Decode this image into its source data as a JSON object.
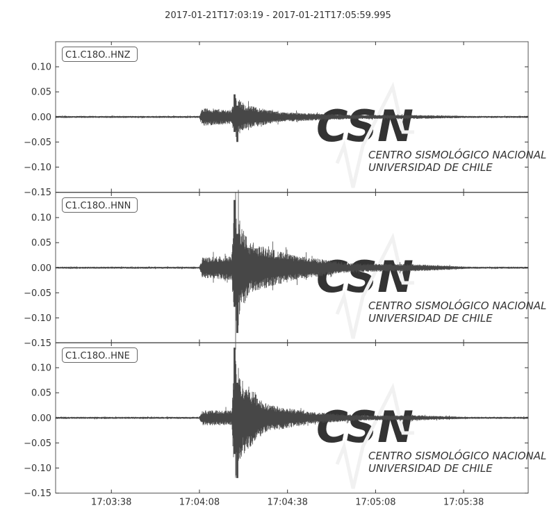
{
  "chart_data": {
    "type": "line",
    "title": "2017-01-21T17:03:19  -  2017-01-21T17:05:59.995",
    "start_time": "17:03:19",
    "end_time": "17:05:59.995",
    "x_ticks": [
      "17:03:38",
      "17:04:08",
      "17:04:38",
      "17:05:08",
      "17:05:38"
    ],
    "y_ticks": [
      "0.10",
      "0.05",
      "0.00",
      "−0.05",
      "−0.10",
      "−0.15"
    ],
    "ylim": [
      -0.15,
      0.15
    ],
    "grid": false,
    "trace_color": "#474747",
    "series": [
      {
        "name": "C1.C18O..HNZ",
        "peak_positive": 0.045,
        "peak_negative": -0.05,
        "envelope": [
          [
            "17:03:19",
            0.002
          ],
          [
            "17:04:08",
            0.002
          ],
          [
            "17:04:09",
            0.018
          ],
          [
            "17:04:19",
            0.014
          ],
          [
            "17:04:20",
            0.045
          ],
          [
            "17:04:23",
            0.025
          ],
          [
            "17:04:35",
            0.01
          ],
          [
            "17:05:00",
            0.004
          ],
          [
            "17:05:22",
            0.004
          ],
          [
            "17:05:40",
            0.002
          ],
          [
            "17:05:59",
            0.002
          ]
        ]
      },
      {
        "name": "C1.C18O..HNN",
        "peak_positive": 0.135,
        "peak_negative": -0.13,
        "envelope": [
          [
            "17:03:19",
            0.002
          ],
          [
            "17:04:08",
            0.002
          ],
          [
            "17:04:09",
            0.02
          ],
          [
            "17:04:19",
            0.025
          ],
          [
            "17:04:20",
            0.135
          ],
          [
            "17:04:22",
            0.09
          ],
          [
            "17:04:25",
            0.05
          ],
          [
            "17:04:40",
            0.025
          ],
          [
            "17:05:00",
            0.009
          ],
          [
            "17:05:22",
            0.007
          ],
          [
            "17:05:40",
            0.002
          ],
          [
            "17:05:59",
            0.002
          ]
        ]
      },
      {
        "name": "C1.C18O..HNE",
        "peak_positive": 0.14,
        "peak_negative": -0.12,
        "envelope": [
          [
            "17:03:19",
            0.002
          ],
          [
            "17:04:08",
            0.002
          ],
          [
            "17:04:09",
            0.015
          ],
          [
            "17:04:19",
            0.015
          ],
          [
            "17:04:20",
            0.14
          ],
          [
            "17:04:22",
            0.08
          ],
          [
            "17:04:30",
            0.03
          ],
          [
            "17:04:45",
            0.012
          ],
          [
            "17:05:05",
            0.005
          ],
          [
            "17:05:22",
            0.005
          ],
          [
            "17:05:40",
            0.002
          ],
          [
            "17:05:59",
            0.002
          ]
        ]
      }
    ]
  },
  "watermark": {
    "logo": "CSN",
    "line1": "CENTRO SISMOLÓGICO NACIONAL",
    "line2": "UNIVERSIDAD DE CHILE",
    "color": "#f1f1f1"
  }
}
